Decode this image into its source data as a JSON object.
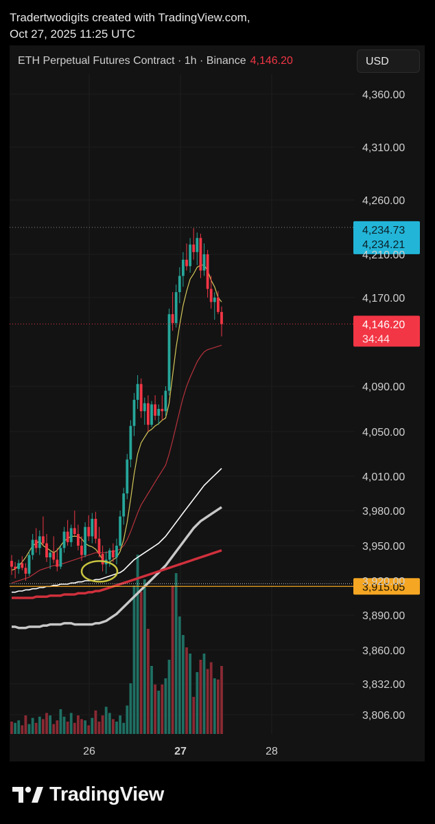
{
  "credit": {
    "line1": "Tradertwodigits created with TradingView.com,",
    "line2": "Oct 27, 2025 11:25 UTC"
  },
  "header": {
    "symbol": "ETH Perpetual Futures Contract · 1h · Binance",
    "price": "4,146.20",
    "currency": "USD"
  },
  "colors": {
    "up": "#26a69a",
    "down": "#f23645",
    "ema_fast": "#d4c95a",
    "ema_mid": "#b8323d",
    "ma_white": "#ffffff",
    "ma_gray": "#c8c8c8",
    "ma_red": "#d0303c",
    "high_badge": "#22b5d8",
    "current_badge": "#f23645",
    "support_badge": "#f5a623"
  },
  "chart_data": {
    "type": "candlestick",
    "y_ticks": [
      "4,360.00",
      "4,310.00",
      "4,260.00",
      "4,210.00",
      "4,170.00",
      "4,090.00",
      "4,050.00",
      "4,010.00",
      "3,980.00",
      "3,950.00",
      "3,920.00",
      "3,890.00",
      "3,860.00",
      "3,832.00",
      "3,806.00"
    ],
    "y_tick_values": [
      4360,
      4310,
      4260,
      4210,
      4170,
      4090,
      4050,
      4010,
      3980,
      3950,
      3920,
      3890,
      3860,
      3832,
      3806
    ],
    "x_ticks": [
      "26",
      "27",
      "28"
    ],
    "markers": {
      "high_1": "4,234.73",
      "high_2": "4,234.21",
      "current_price": "4,146.20",
      "countdown": "34:44",
      "support": "3,915.05"
    },
    "candles": [
      [
        3937,
        3942,
        3925,
        3932
      ],
      [
        3932,
        3936,
        3922,
        3930
      ],
      [
        3930,
        3938,
        3926,
        3935
      ],
      [
        3935,
        3941,
        3929,
        3931
      ],
      [
        3931,
        3935,
        3920,
        3926
      ],
      [
        3926,
        3945,
        3924,
        3942
      ],
      [
        3942,
        3960,
        3938,
        3955
      ],
      [
        3955,
        3965,
        3944,
        3948
      ],
      [
        3948,
        3963,
        3942,
        3958
      ],
      [
        3958,
        3975,
        3950,
        3952
      ],
      [
        3952,
        3960,
        3936,
        3940
      ],
      [
        3940,
        3946,
        3930,
        3944
      ],
      [
        3944,
        3958,
        3935,
        3938
      ],
      [
        3938,
        3948,
        3928,
        3932
      ],
      [
        3932,
        3950,
        3930,
        3948
      ],
      [
        3948,
        3966,
        3944,
        3962
      ],
      [
        3962,
        3972,
        3950,
        3953
      ],
      [
        3953,
        3968,
        3949,
        3965
      ],
      [
        3965,
        3980,
        3958,
        3960
      ],
      [
        3960,
        3968,
        3946,
        3950
      ],
      [
        3950,
        3958,
        3937,
        3942
      ],
      [
        3942,
        3970,
        3940,
        3966
      ],
      [
        3966,
        3976,
        3954,
        3958
      ],
      [
        3958,
        3978,
        3952,
        3973
      ],
      [
        3973,
        3979,
        3952,
        3956
      ],
      [
        3956,
        3966,
        3940,
        3943
      ],
      [
        3943,
        3950,
        3928,
        3934
      ],
      [
        3934,
        3945,
        3926,
        3938
      ],
      [
        3938,
        3948,
        3932,
        3946
      ],
      [
        3946,
        3952,
        3936,
        3940
      ],
      [
        3940,
        3956,
        3934,
        3950
      ],
      [
        3950,
        3980,
        3948,
        3975
      ],
      [
        3975,
        4000,
        3968,
        3995
      ],
      [
        3995,
        4030,
        3990,
        4025
      ],
      [
        4025,
        4060,
        4018,
        4055
      ],
      [
        4055,
        4084,
        4046,
        4078
      ],
      [
        4078,
        4100,
        4070,
        4092
      ],
      [
        4092,
        4097,
        4062,
        4068
      ],
      [
        4068,
        4080,
        4056,
        4075
      ],
      [
        4075,
        4082,
        4050,
        4056
      ],
      [
        4056,
        4077,
        4054,
        4074
      ],
      [
        4074,
        4082,
        4060,
        4064
      ],
      [
        4064,
        4074,
        4056,
        4070
      ],
      [
        4070,
        4082,
        4060,
        4068
      ],
      [
        4068,
        4090,
        4064,
        4086
      ],
      [
        4086,
        4160,
        4082,
        4155
      ],
      [
        4155,
        4175,
        4140,
        4147
      ],
      [
        4147,
        4182,
        4143,
        4175
      ],
      [
        4175,
        4198,
        4165,
        4190
      ],
      [
        4190,
        4212,
        4180,
        4205
      ],
      [
        4205,
        4220,
        4195,
        4199
      ],
      [
        4199,
        4225,
        4193,
        4219
      ],
      [
        4219,
        4234,
        4205,
        4212
      ],
      [
        4212,
        4230,
        4200,
        4225
      ],
      [
        4225,
        4229,
        4188,
        4195
      ],
      [
        4195,
        4220,
        4190,
        4210
      ],
      [
        4210,
        4214,
        4170,
        4178
      ],
      [
        4178,
        4190,
        4160,
        4166
      ],
      [
        4166,
        4175,
        4150,
        4170
      ],
      [
        4170,
        4176,
        4155,
        4157
      ],
      [
        4157,
        4162,
        4135,
        4146
      ]
    ],
    "volume": [
      20,
      18,
      22,
      14,
      30,
      16,
      26,
      18,
      28,
      24,
      34,
      30,
      16,
      22,
      40,
      28,
      20,
      34,
      18,
      30,
      24,
      22,
      14,
      26,
      38,
      20,
      30,
      44,
      34,
      24,
      20,
      30,
      18,
      46,
      82,
      240,
      290,
      230,
      250,
      170,
      110,
      80,
      70,
      80,
      90,
      120,
      240,
      260,
      190,
      160,
      140,
      130,
      60,
      100,
      120,
      130,
      105,
      116,
      90,
      88,
      110
    ],
    "volume_up": [
      0,
      1,
      1,
      0,
      0,
      1,
      1,
      0,
      1,
      0,
      0,
      1,
      0,
      0,
      1,
      1,
      0,
      1,
      0,
      0,
      0,
      1,
      0,
      1,
      0,
      0,
      0,
      1,
      1,
      0,
      1,
      1,
      1,
      1,
      1,
      1,
      1,
      0,
      1,
      0,
      1,
      0,
      1,
      0,
      1,
      1,
      0,
      1,
      1,
      1,
      0,
      1,
      0,
      1,
      0,
      1,
      0,
      0,
      1,
      0,
      0
    ],
    "ema_fast": [
      3929,
      3930,
      3933,
      3936,
      3940,
      3945,
      3950,
      3952,
      3954,
      3950,
      3948,
      3946,
      3944,
      3946,
      3950,
      3954,
      3956,
      3958,
      3958,
      3958,
      3956,
      3952,
      3950,
      3949,
      3947,
      3943,
      3938,
      3935,
      3936,
      3938,
      3940,
      3945,
      3955,
      3970,
      3990,
      4012,
      4030,
      4040,
      4045,
      4050,
      4052,
      4055,
      4057,
      4060,
      4062,
      4075,
      4100,
      4125,
      4145,
      4163,
      4176,
      4187,
      4192,
      4198,
      4200,
      4200,
      4195,
      4186,
      4180,
      4170,
      4166
    ],
    "ema_mid": [
      3918,
      3919,
      3920,
      3921,
      3922,
      3923,
      3925,
      3927,
      3929,
      3930,
      3931,
      3932,
      3933,
      3933,
      3934,
      3935,
      3936,
      3937,
      3938,
      3939,
      3940,
      3941,
      3942,
      3943,
      3944,
      3944,
      3944,
      3944,
      3945,
      3945,
      3946,
      3947,
      3950,
      3955,
      3962,
      3970,
      3978,
      3985,
      3990,
      3995,
      4000,
      4005,
      4010,
      4015,
      4020,
      4030,
      4042,
      4055,
      4068,
      4080,
      4090,
      4098,
      4105,
      4112,
      4117,
      4121,
      4123,
      4124,
      4125,
      4126,
      4127
    ],
    "ma_white": [
      3910,
      3910,
      3911,
      3911,
      3912,
      3912,
      3913,
      3913,
      3914,
      3914,
      3915,
      3915,
      3916,
      3916,
      3917,
      3917,
      3917,
      3918,
      3918,
      3919,
      3919,
      3920,
      3920,
      3920,
      3921,
      3921,
      3922,
      3923,
      3924,
      3925,
      3926,
      3927,
      3929,
      3932,
      3935,
      3938,
      3940,
      3942,
      3944,
      3946,
      3948,
      3950,
      3952,
      3955,
      3958,
      3962,
      3966,
      3970,
      3974,
      3978,
      3982,
      3986,
      3990,
      3994,
      3998,
      4002,
      4005,
      4008,
      4011,
      4014,
      4017
    ],
    "ma_gray": [
      3880,
      3880,
      3879,
      3879,
      3879,
      3880,
      3880,
      3880,
      3880,
      3881,
      3881,
      3882,
      3882,
      3882,
      3882,
      3883,
      3883,
      3883,
      3882,
      3882,
      3882,
      3882,
      3882,
      3882,
      3883,
      3883,
      3884,
      3885,
      3887,
      3889,
      3891,
      3894,
      3897,
      3900,
      3903,
      3906,
      3909,
      3912,
      3915,
      3918,
      3921,
      3924,
      3927,
      3930,
      3933,
      3937,
      3941,
      3945,
      3949,
      3953,
      3957,
      3961,
      3965,
      3968,
      3971,
      3973,
      3975,
      3977,
      3979,
      3981,
      3983
    ],
    "ma_red": [
      3905,
      3905,
      3905,
      3905,
      3905,
      3905,
      3905,
      3906,
      3906,
      3906,
      3906,
      3907,
      3907,
      3907,
      3907,
      3908,
      3908,
      3908,
      3908,
      3909,
      3909,
      3909,
      3910,
      3910,
      3911,
      3911,
      3912,
      3913,
      3914,
      3915,
      3916,
      3917,
      3918,
      3919,
      3920,
      3921,
      3922,
      3923,
      3924,
      3925,
      3926,
      3927,
      3928,
      3929,
      3930,
      3931,
      3932,
      3933,
      3934,
      3935,
      3936,
      3937,
      3938,
      3939,
      3940,
      3941,
      3942,
      3943,
      3944,
      3945,
      3946
    ]
  },
  "brand": {
    "name": "TradingView"
  }
}
